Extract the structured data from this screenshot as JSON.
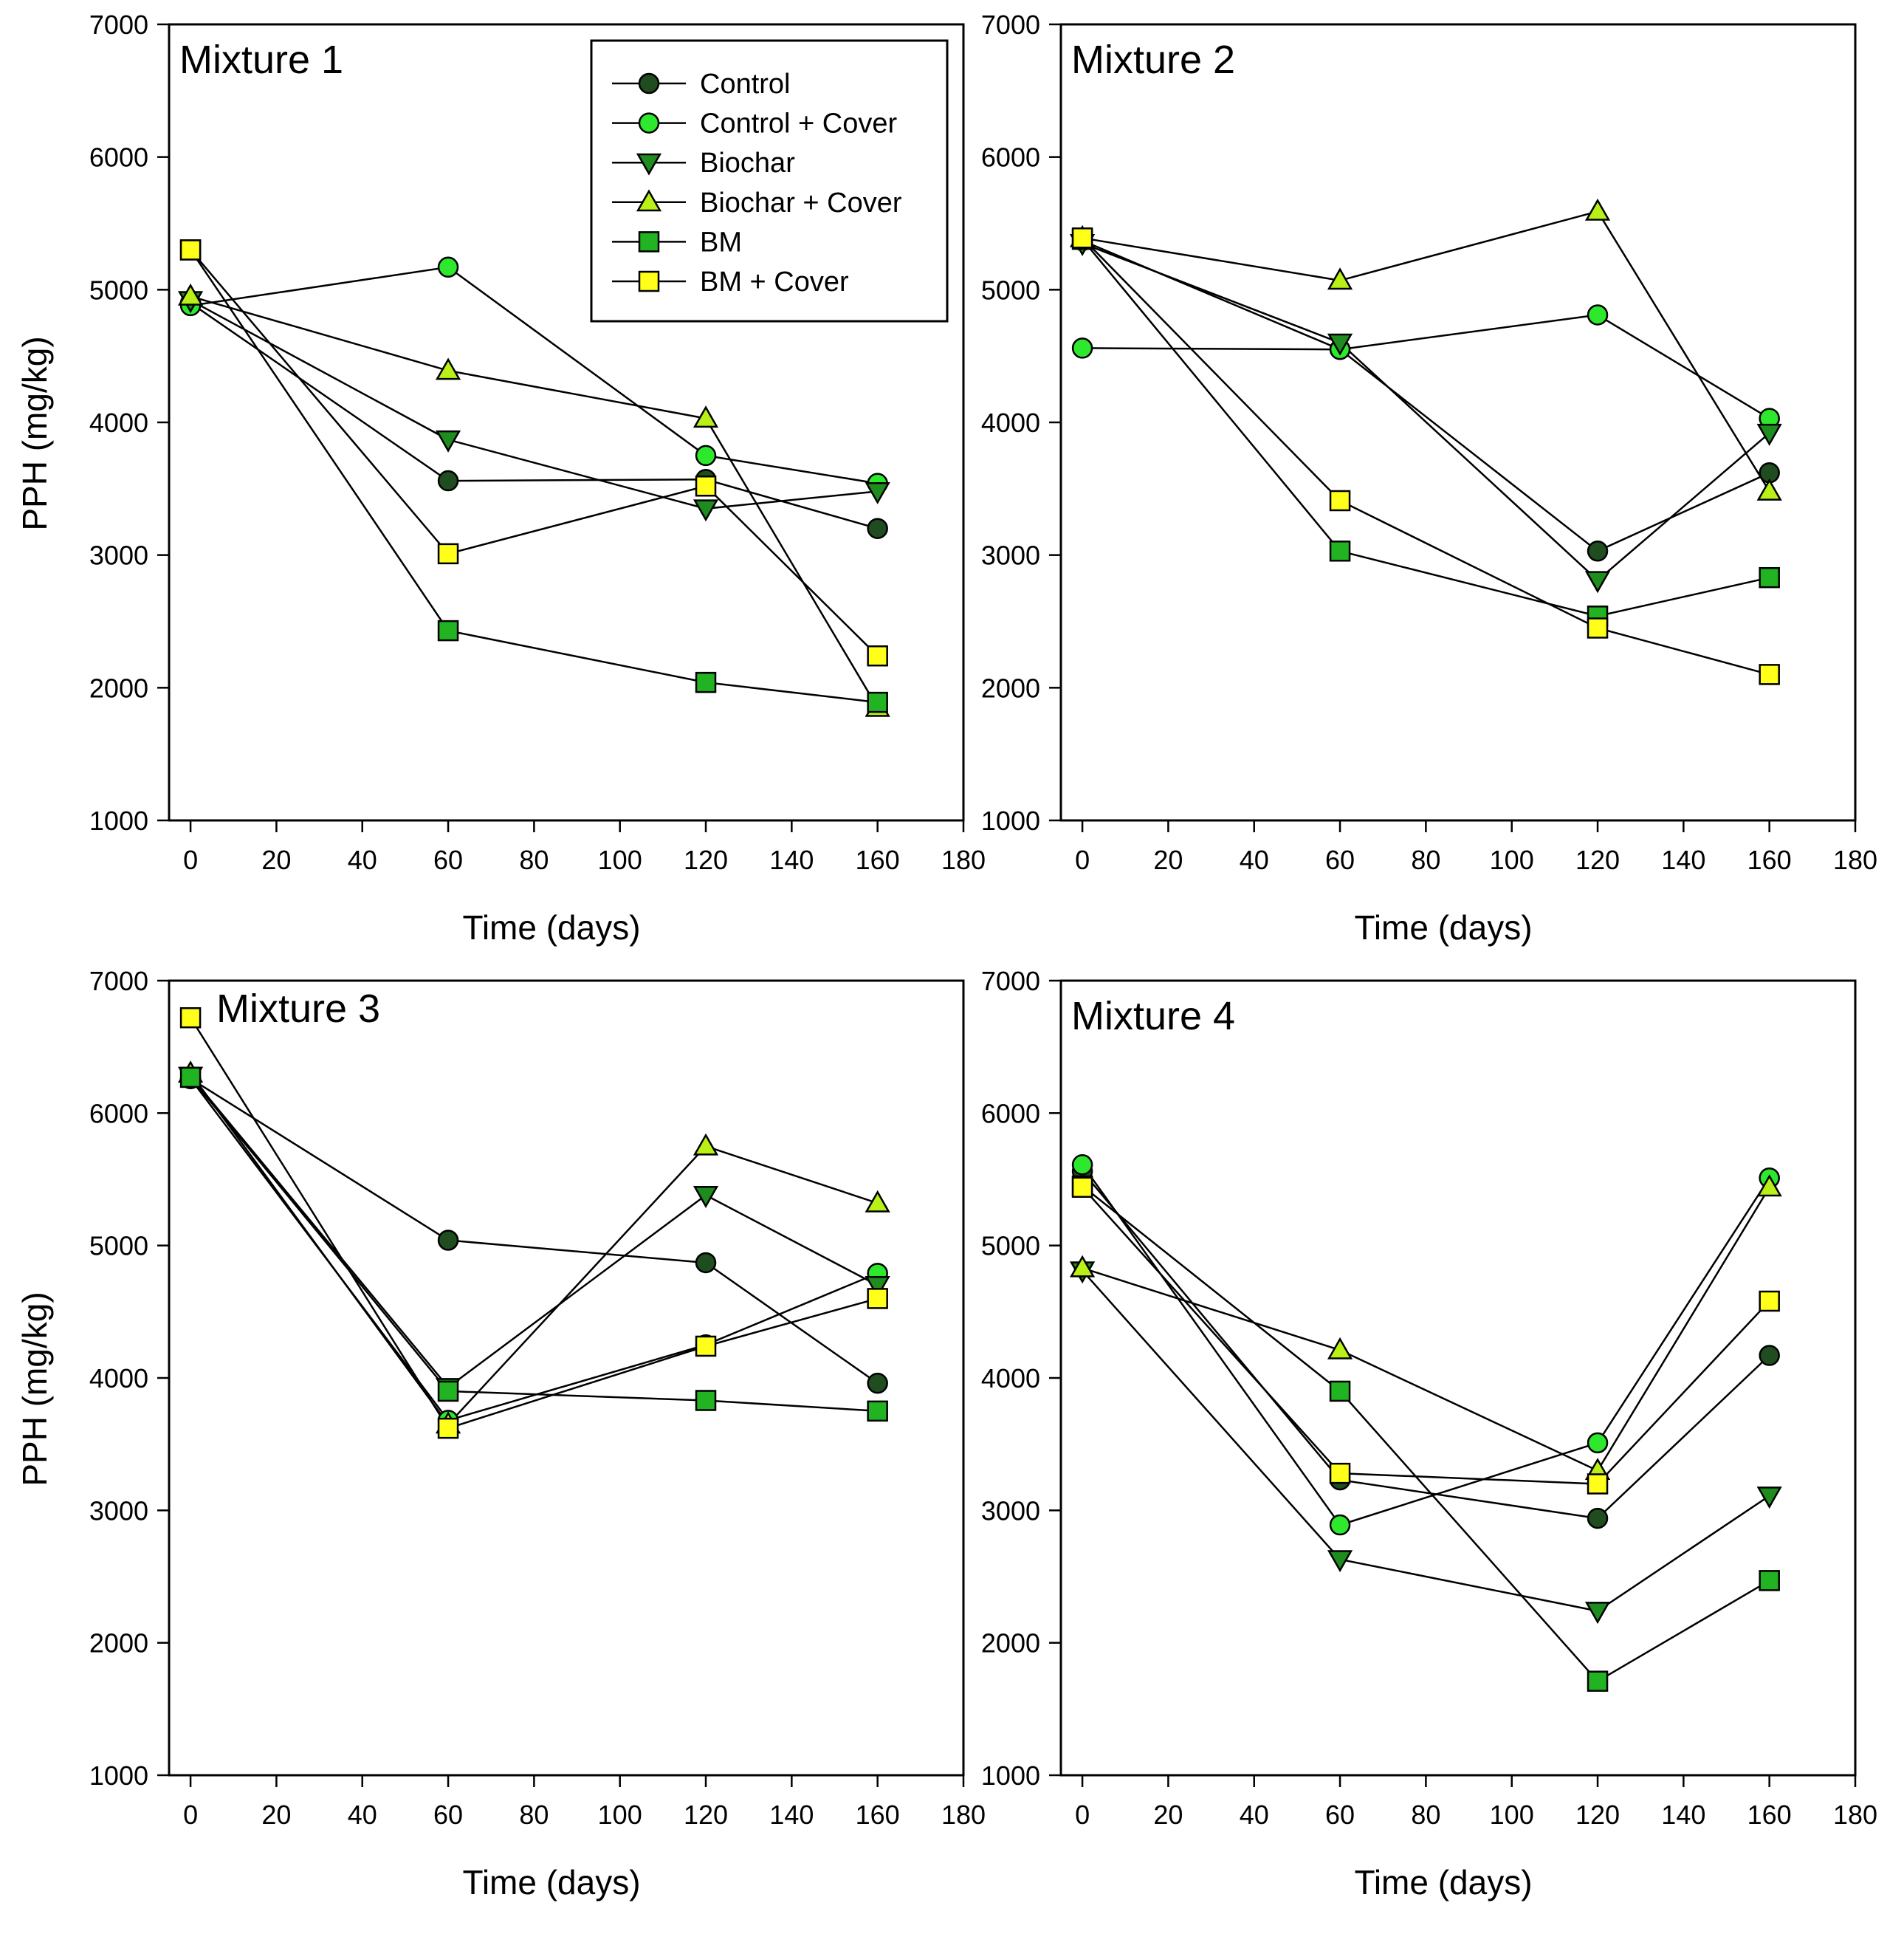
{
  "chart_data": {
    "type": "line",
    "xlabel": "Time (days)",
    "ylabel": "PPH (mg/kg)",
    "xlim": [
      -5,
      180
    ],
    "ylim": [
      1000,
      7000
    ],
    "xticks": [
      "0",
      "20",
      "40",
      "60",
      "80",
      "100",
      "120",
      "140",
      "160",
      "180"
    ],
    "yticks": [
      "1000",
      "2000",
      "3000",
      "4000",
      "5000",
      "6000",
      "7000"
    ],
    "x": [
      0,
      60,
      120,
      160
    ],
    "series_styles": [
      {
        "name": "Control",
        "marker": "circle",
        "fill": "#1f4d1f"
      },
      {
        "name": "Control + Cover",
        "marker": "circle",
        "fill": "#2ee82e"
      },
      {
        "name": "Biochar",
        "marker": "triangle-down",
        "fill": "#1e8c1e"
      },
      {
        "name": "Biochar + Cover",
        "marker": "triangle-up",
        "fill": "#b8f018"
      },
      {
        "name": "BM",
        "marker": "square",
        "fill": "#22b322"
      },
      {
        "name": "BM + Cover",
        "marker": "square",
        "fill": "#ffff1a"
      }
    ],
    "panels": [
      {
        "title": "Mixture 1",
        "series": [
          {
            "name": "Control",
            "values": [
              4900,
              3560,
              3570,
              3200
            ]
          },
          {
            "name": "Control + Cover",
            "values": [
              4880,
              5170,
              3750,
              3540
            ]
          },
          {
            "name": "Biochar",
            "values": [
              4920,
              3870,
              3350,
              3480
            ]
          },
          {
            "name": "Biochar + Cover",
            "values": [
              4950,
              4390,
              4030,
              1850
            ]
          },
          {
            "name": "BM",
            "values": [
              5300,
              2430,
              2040,
              1890
            ]
          },
          {
            "name": "BM + Cover",
            "values": [
              5300,
              3010,
              3520,
              2240
            ]
          }
        ]
      },
      {
        "title": "Mixture 2",
        "series": [
          {
            "name": "Control",
            "values": [
              5370,
              4550,
              3030,
              3620
            ]
          },
          {
            "name": "Control + Cover",
            "values": [
              4560,
              4550,
              4810,
              4030
            ]
          },
          {
            "name": "Biochar",
            "values": [
              5350,
              4600,
              2810,
              3920
            ]
          },
          {
            "name": "Biochar + Cover",
            "values": [
              5390,
              5070,
              5590,
              3480
            ]
          },
          {
            "name": "BM",
            "values": [
              5380,
              3030,
              2540,
              2830
            ]
          },
          {
            "name": "BM + Cover",
            "values": [
              5390,
              3410,
              2450,
              2100
            ]
          }
        ]
      },
      {
        "title": "Mixture 3",
        "series": [
          {
            "name": "Control",
            "values": [
              6260,
              5040,
              4870,
              3960
            ]
          },
          {
            "name": "Control + Cover",
            "values": [
              6260,
              3680,
              4250,
              4790
            ]
          },
          {
            "name": "Biochar",
            "values": [
              6280,
              3930,
              5380,
              4700
            ]
          },
          {
            "name": "Biochar + Cover",
            "values": [
              6300,
              3650,
              5750,
              5320
            ]
          },
          {
            "name": "BM",
            "values": [
              6270,
              3900,
              3830,
              3750
            ]
          },
          {
            "name": "BM + Cover",
            "values": [
              6720,
              3620,
              4240,
              4600
            ]
          }
        ]
      },
      {
        "title": "Mixture 4",
        "series": [
          {
            "name": "Control",
            "values": [
              5560,
              3230,
              2940,
              4170
            ]
          },
          {
            "name": "Control + Cover",
            "values": [
              5610,
              2890,
              3510,
              5510
            ]
          },
          {
            "name": "Biochar",
            "values": [
              4810,
              2630,
              2240,
              3110
            ]
          },
          {
            "name": "Biochar + Cover",
            "values": [
              4830,
              4210,
              3300,
              5440
            ]
          },
          {
            "name": "BM",
            "values": [
              5450,
              3900,
              1710,
              2470
            ]
          },
          {
            "name": "BM + Cover",
            "values": [
              5440,
              3280,
              3200,
              4580
            ]
          }
        ]
      }
    ]
  },
  "legend": {
    "items": [
      "Control",
      "Control + Cover",
      "Biochar",
      "Biochar + Cover",
      "BM",
      "BM + Cover"
    ]
  }
}
